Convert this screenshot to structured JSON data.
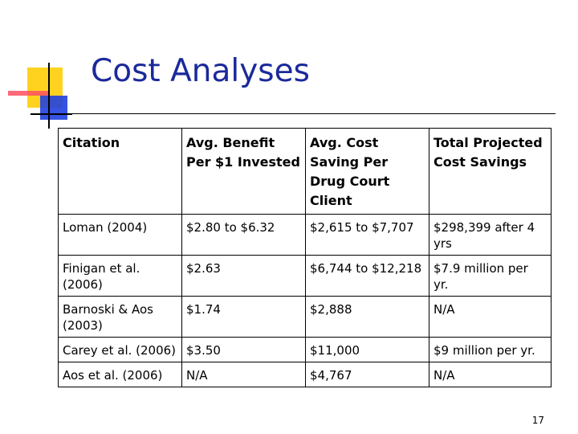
{
  "slide": {
    "title": "Cost Analyses",
    "page_number": "17"
  },
  "table": {
    "headers": [
      "Citation",
      "Avg. Benefit Per $1 Invested",
      "Avg. Cost Saving Per Drug Court Client",
      "Total Projected Cost Savings"
    ],
    "rows": [
      [
        "Loman (2004)",
        "$2.80 to $6.32",
        "$2,615 to $7,707",
        "$298,399 after 4 yrs"
      ],
      [
        "Finigan et al. (2006)",
        "$2.63",
        "$6,744 to $12,218",
        "$7.9 million per yr."
      ],
      [
        "Barnoski & Aos (2003)",
        "$1.74",
        "$2,888",
        "N/A"
      ],
      [
        "Carey et al. (2006)",
        "$3.50",
        "$11,000",
        "$9 million per yr."
      ],
      [
        "Aos et al. (2006)",
        "N/A",
        "$4,767",
        "N/A"
      ]
    ]
  },
  "colors": {
    "title": "#1a2a9a",
    "logo_yellow": "#ffd21f",
    "logo_red": "#ff5060",
    "logo_blue": "#2040e0"
  }
}
